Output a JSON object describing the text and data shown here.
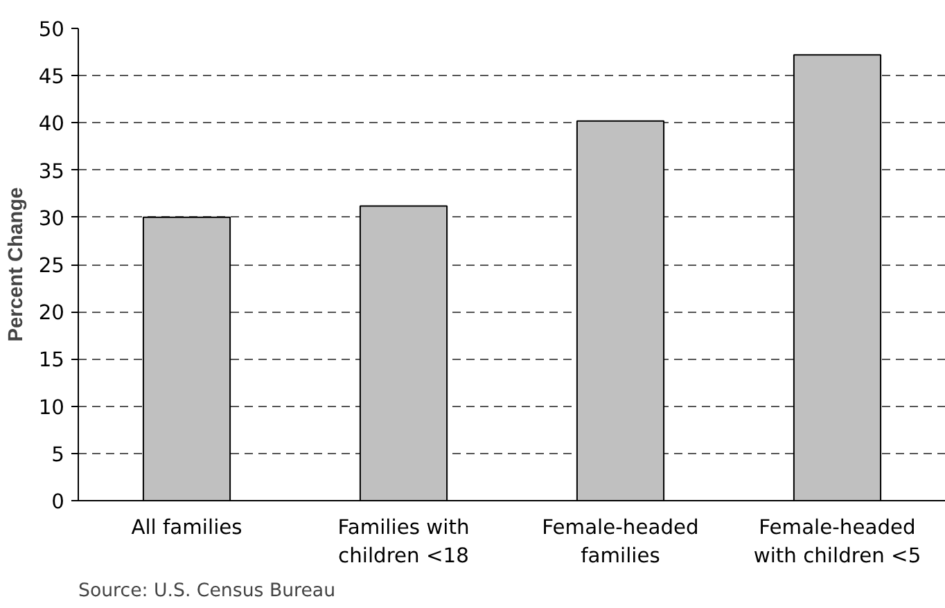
{
  "chart_data": {
    "type": "bar",
    "ylabel": "Percent Change",
    "categories": [
      "All families",
      "Families with\nchildren <18",
      "Female-headed\nfamilies",
      "Female-headed\nwith children <5"
    ],
    "values": [
      30,
      31.2,
      40.2,
      47.2
    ],
    "color": "#c0c0c0",
    "ylim": [
      0,
      50
    ],
    "yticks": [
      0,
      5,
      10,
      15,
      20,
      25,
      30,
      35,
      40,
      45,
      50
    ],
    "grid": "y",
    "line_style": "dashed",
    "annotations": [
      "Source: U.S. Census Bureau"
    ]
  }
}
